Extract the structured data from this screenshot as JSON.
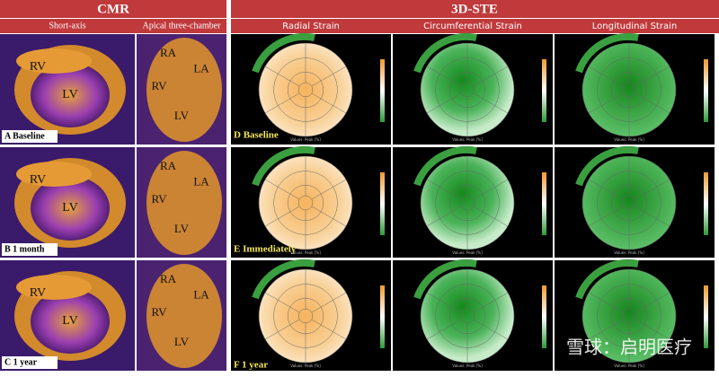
{
  "cmr": {
    "title": "CMR",
    "columns": [
      "Short-axis",
      "Apical three-chamber"
    ],
    "rows": [
      {
        "label": "A Baseline",
        "short_axis": [
          "RV",
          "LV"
        ],
        "apical": [
          "RA",
          "LA",
          "RV",
          "LV"
        ]
      },
      {
        "label": "B 1 month",
        "short_axis": [
          "RV",
          "LV"
        ],
        "apical": [
          "RA",
          "LA",
          "RV",
          "LV"
        ]
      },
      {
        "label": "C 1 year",
        "short_axis": [
          "RV",
          "LV"
        ],
        "apical": [
          "RA",
          "LA",
          "RV",
          "LV"
        ]
      }
    ]
  },
  "ste": {
    "title": "3D-STE",
    "columns": [
      "Radial Strain",
      "Circumferential Strain",
      "Longitudinal Strain"
    ],
    "rows": [
      {
        "label": "D Baseline"
      },
      {
        "label": "E Immediately"
      },
      {
        "label": "F 1 year"
      }
    ],
    "plot_footer": "Values: Peak [%]"
  },
  "watermark": "雪球：启明医疗"
}
